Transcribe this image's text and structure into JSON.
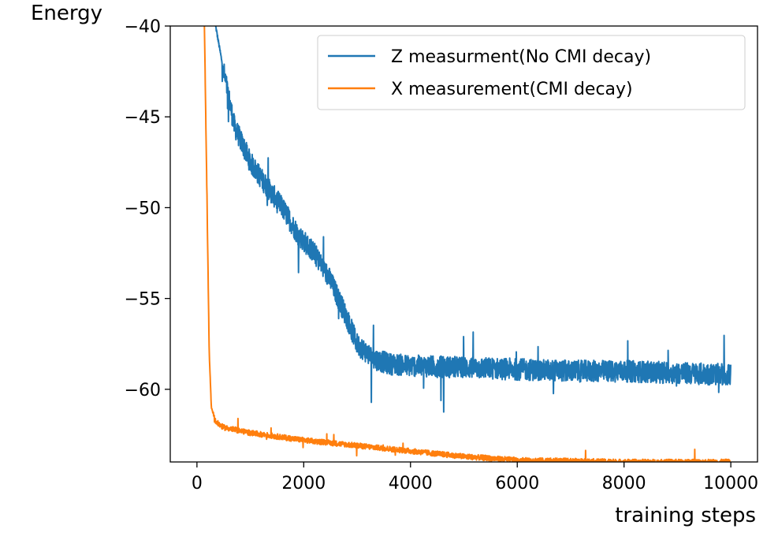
{
  "chart_data": {
    "type": "line",
    "title": "",
    "xlabel": "training steps",
    "ylabel": "Energy",
    "xlim": [
      -500,
      10500
    ],
    "ylim": [
      -64,
      -40
    ],
    "xticks": [
      0,
      2000,
      4000,
      6000,
      8000,
      10000
    ],
    "xtick_labels": [
      "0",
      "2000",
      "4000",
      "6000",
      "8000",
      "10000"
    ],
    "yticks": [
      -40,
      -45,
      -50,
      -55,
      -60
    ],
    "ytick_labels": [
      "−40",
      "−45",
      "−50",
      "−55",
      "−60"
    ],
    "grid": false,
    "legend_position": "top-right",
    "series": [
      {
        "name": "Z measurment(No CMI decay)",
        "color": "#1f77b4",
        "noise": 0.6,
        "x": [
          350,
          500,
          700,
          1000,
          1300,
          1600,
          1900,
          2200,
          2500,
          2800,
          3000,
          3300,
          3600,
          4000,
          5000,
          6000,
          7000,
          8000,
          9000,
          10000
        ],
        "y": [
          -40,
          -42.5,
          -45.5,
          -47.5,
          -48.8,
          -50.0,
          -51.5,
          -52.5,
          -54.0,
          -56.0,
          -57.5,
          -58.3,
          -58.6,
          -58.7,
          -58.8,
          -58.9,
          -59.0,
          -59.0,
          -59.1,
          -59.2
        ]
      },
      {
        "name": "X measurement(CMI decay)",
        "color": "#ff7f0e",
        "noise": 0.15,
        "x": [
          140,
          190,
          230,
          270,
          350,
          500,
          1000,
          2000,
          3000,
          4000,
          5000,
          6000,
          7000,
          8000,
          9000,
          10000
        ],
        "y": [
          -40,
          -50,
          -58,
          -61,
          -61.8,
          -62.1,
          -62.4,
          -62.8,
          -63.1,
          -63.4,
          -63.7,
          -63.9,
          -63.95,
          -64.0,
          -64.0,
          -64.0
        ]
      }
    ]
  }
}
